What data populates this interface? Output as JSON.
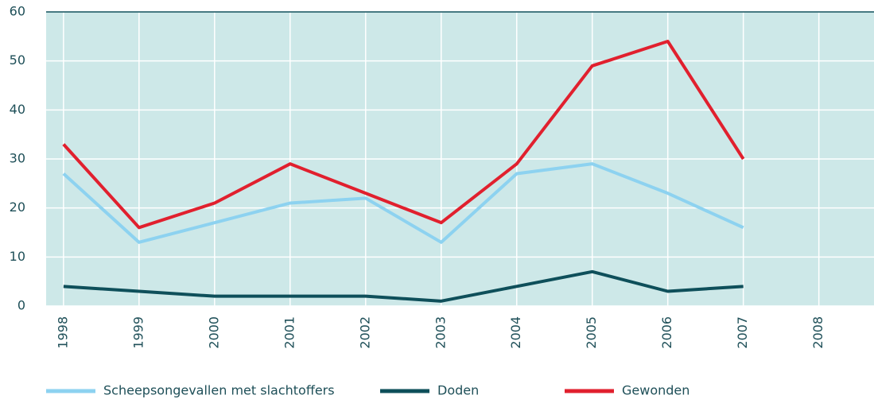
{
  "chart_data": {
    "type": "line",
    "x": [
      1998,
      1999,
      2000,
      2001,
      2002,
      2003,
      2004,
      2005,
      2006,
      2007,
      2008
    ],
    "series": [
      {
        "name": "Scheepsongevallen met slachtoffers",
        "color": "#8dd2f0",
        "values": [
          27,
          13,
          17,
          21,
          22,
          13,
          27,
          29,
          23,
          16,
          null
        ]
      },
      {
        "name": "Doden",
        "color": "#0e4f5a",
        "values": [
          4,
          3,
          2,
          2,
          2,
          1,
          4,
          7,
          3,
          4,
          null
        ]
      },
      {
        "name": "Gewonden",
        "color": "#e1202e",
        "values": [
          33,
          16,
          21,
          29,
          23,
          17,
          29,
          49,
          54,
          30,
          null
        ]
      }
    ],
    "xlim": [
      1997.77,
      2008.73
    ],
    "xticks": [
      1998,
      1999,
      2000,
      2001,
      2002,
      2003,
      2004,
      2005,
      2006,
      2007,
      2008
    ],
    "ylim": [
      0,
      60
    ],
    "yticks": [
      0,
      10,
      20,
      30,
      40,
      50,
      60
    ],
    "grid": true
  }
}
